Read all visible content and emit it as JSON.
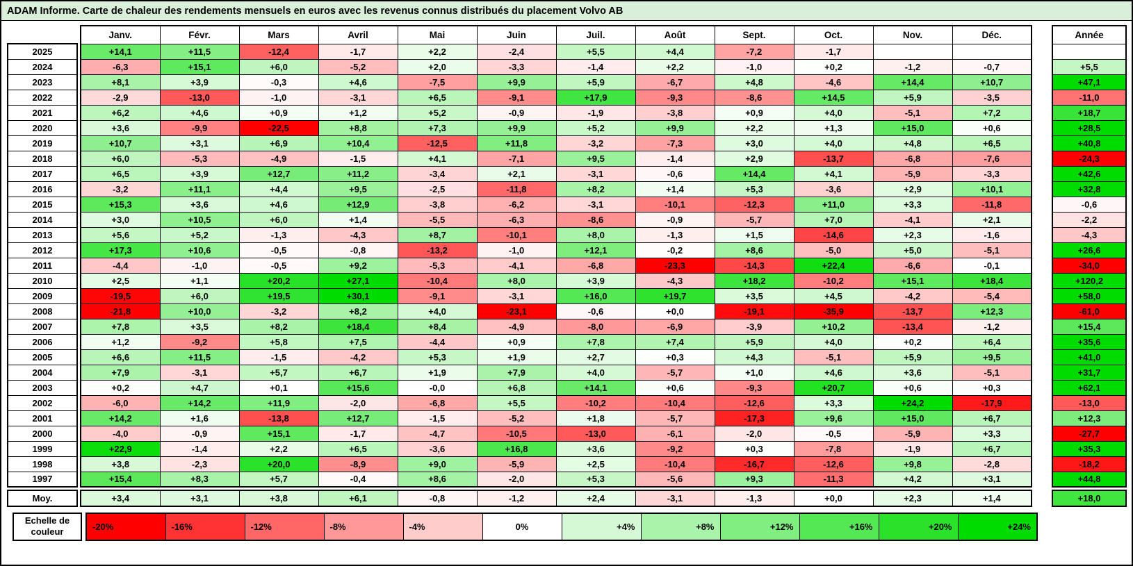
{
  "title_bar_bg": "#D9EFD9",
  "chart_data": {
    "type": "heatmap",
    "title": "ADAM Informe. Carte de chaleur des rendements mensuels en euros avec les revenus connus distribués du placement Volvo AB",
    "columns": [
      "Janv.",
      "Févr.",
      "Mars",
      "Avril",
      "Mai",
      "Juin",
      "Juil.",
      "Août",
      "Sept.",
      "Oct.",
      "Nov.",
      "Déc."
    ],
    "annual_label": "Année",
    "rows": [
      {
        "label": "2025",
        "values": [
          "+14,1",
          "+11,5",
          "-12,4",
          "-1,7",
          "+2,2",
          "-2,4",
          "+5,5",
          "+4,4",
          "-7,2",
          "-1,7",
          "",
          ""
        ],
        "annual": ""
      },
      {
        "label": "2024",
        "values": [
          "-6,3",
          "+15,1",
          "+6,0",
          "-5,2",
          "+2,0",
          "-3,3",
          "-1,4",
          "+2,2",
          "-1,0",
          "+0,2",
          "-1,2",
          "-0,7"
        ],
        "annual": "+5,5"
      },
      {
        "label": "2023",
        "values": [
          "+8,1",
          "+3,9",
          "-0,3",
          "+4,6",
          "-7,5",
          "+9,9",
          "+5,9",
          "-6,7",
          "+4,8",
          "-4,6",
          "+14,4",
          "+10,7"
        ],
        "annual": "+47,1"
      },
      {
        "label": "2022",
        "values": [
          "-2,9",
          "-13,0",
          "-1,0",
          "-3,1",
          "+6,5",
          "-9,1",
          "+17,9",
          "-9,3",
          "-8,6",
          "+14,5",
          "+5,9",
          "-3,5"
        ],
        "annual": "-11,0"
      },
      {
        "label": "2021",
        "values": [
          "+6,2",
          "+4,6",
          "+0,9",
          "+1,2",
          "+5,2",
          "-0,9",
          "-1,9",
          "-3,8",
          "+0,9",
          "+4,0",
          "-5,1",
          "+7,2"
        ],
        "annual": "+18,7"
      },
      {
        "label": "2020",
        "values": [
          "+3,6",
          "-9,9",
          "-22,5",
          "+8,8",
          "+7,3",
          "+9,9",
          "+5,2",
          "+9,9",
          "+2,2",
          "+1,3",
          "+15,0",
          "+0,6"
        ],
        "annual": "+28,5"
      },
      {
        "label": "2019",
        "values": [
          "+10,7",
          "+3,1",
          "+6,9",
          "+10,4",
          "-12,5",
          "+11,8",
          "-3,2",
          "-7,3",
          "+3,0",
          "+4,0",
          "+4,8",
          "+6,5"
        ],
        "annual": "+40,8"
      },
      {
        "label": "2018",
        "values": [
          "+6,0",
          "-5,3",
          "-4,9",
          "-1,5",
          "+4,1",
          "-7,1",
          "+9,5",
          "-1,4",
          "+2,9",
          "-13,7",
          "-6,8",
          "-7,6"
        ],
        "annual": "-24,3"
      },
      {
        "label": "2017",
        "values": [
          "+6,5",
          "+3,9",
          "+12,7",
          "+11,2",
          "-3,4",
          "+2,1",
          "-3,1",
          "-0,6",
          "+14,4",
          "+4,1",
          "-5,9",
          "-3,3"
        ],
        "annual": "+42,6"
      },
      {
        "label": "2016",
        "values": [
          "-3,2",
          "+11,1",
          "+4,4",
          "+9,5",
          "-2,5",
          "-11,8",
          "+8,2",
          "+1,4",
          "+5,3",
          "-3,6",
          "+2,9",
          "+10,1"
        ],
        "annual": "+32,8"
      },
      {
        "label": "2015",
        "values": [
          "+15,3",
          "+3,6",
          "+4,6",
          "+12,9",
          "-3,8",
          "-6,2",
          "-3,1",
          "-10,1",
          "-12,3",
          "+11,0",
          "+3,3",
          "-11,8"
        ],
        "annual": "-0,6"
      },
      {
        "label": "2014",
        "values": [
          "+3,0",
          "+10,5",
          "+6,0",
          "+1,4",
          "-5,5",
          "-6,3",
          "-8,6",
          "-0,9",
          "-5,7",
          "+7,0",
          "-4,1",
          "+2,1"
        ],
        "annual": "-2,2"
      },
      {
        "label": "2013",
        "values": [
          "+5,6",
          "+5,2",
          "-1,3",
          "-4,3",
          "+8,7",
          "-10,1",
          "+8,0",
          "-1,3",
          "+1,5",
          "-14,6",
          "+2,3",
          "-1,6"
        ],
        "annual": "-4,3"
      },
      {
        "label": "2012",
        "values": [
          "+17,3",
          "+10,6",
          "-0,5",
          "-0,8",
          "-13,2",
          "-1,0",
          "+12,1",
          "-0,2",
          "+8,6",
          "-5,0",
          "+5,0",
          "-5,1"
        ],
        "annual": "+26,6"
      },
      {
        "label": "2011",
        "values": [
          "-4,4",
          "-1,0",
          "-0,5",
          "+9,2",
          "-5,3",
          "-4,1",
          "-6,8",
          "-23,3",
          "-14,3",
          "+22,4",
          "-6,6",
          "-0,1"
        ],
        "annual": "-34,0"
      },
      {
        "label": "2010",
        "values": [
          "+2,5",
          "+1,1",
          "+20,2",
          "+27,1",
          "-10,4",
          "+8,0",
          "+3,9",
          "-4,3",
          "+18,2",
          "-10,2",
          "+15,1",
          "+18,4"
        ],
        "annual": "+120,2"
      },
      {
        "label": "2009",
        "values": [
          "-19,5",
          "+6,0",
          "+19,5",
          "+30,1",
          "-9,1",
          "-3,1",
          "+16,0",
          "+19,7",
          "+3,5",
          "+4,5",
          "-4,2",
          "-5,4"
        ],
        "annual": "+58,0"
      },
      {
        "label": "2008",
        "values": [
          "-21,8",
          "+10,0",
          "-3,2",
          "+8,2",
          "+4,0",
          "-23,1",
          "-0,6",
          "+0,0",
          "-19,1",
          "-35,9",
          "-13,7",
          "+12,3"
        ],
        "annual": "-61,0"
      },
      {
        "label": "2007",
        "values": [
          "+7,8",
          "+3,5",
          "+8,2",
          "+18,4",
          "+8,4",
          "-4,9",
          "-8,0",
          "-6,9",
          "-3,9",
          "+10,2",
          "-13,4",
          "-1,2"
        ],
        "annual": "+15,4"
      },
      {
        "label": "2006",
        "values": [
          "+1,2",
          "-9,2",
          "+5,8",
          "+7,5",
          "-4,4",
          "+0,9",
          "+7,8",
          "+7,4",
          "+5,9",
          "+4,0",
          "+0,2",
          "+6,4"
        ],
        "annual": "+35,6"
      },
      {
        "label": "2005",
        "values": [
          "+6,6",
          "+11,5",
          "-1,5",
          "-4,2",
          "+5,3",
          "+1,9",
          "+2,7",
          "+0,3",
          "+4,3",
          "-5,1",
          "+5,9",
          "+9,5"
        ],
        "annual": "+41,0"
      },
      {
        "label": "2004",
        "values": [
          "+7,9",
          "-3,1",
          "+5,7",
          "+6,7",
          "+1,9",
          "+7,9",
          "+4,0",
          "-5,7",
          "+1,0",
          "+4,6",
          "+3,6",
          "-5,1"
        ],
        "annual": "+31,7"
      },
      {
        "label": "2003",
        "values": [
          "+0,2",
          "+4,7",
          "+0,1",
          "+15,6",
          "-0,0",
          "+6,8",
          "+14,1",
          "+0,6",
          "-9,3",
          "+20,7",
          "+0,6",
          "+0,3"
        ],
        "annual": "+62,1"
      },
      {
        "label": "2002",
        "values": [
          "-6,0",
          "+14,2",
          "+11,9",
          "-2,0",
          "-6,8",
          "+5,5",
          "-10,2",
          "-10,4",
          "-12,6",
          "+3,3",
          "+24,2",
          "-17,9"
        ],
        "annual": "-13,0"
      },
      {
        "label": "2001",
        "values": [
          "+14,2",
          "+1,6",
          "-13,8",
          "+12,7",
          "-1,5",
          "-5,2",
          "+1,8",
          "-5,7",
          "-17,3",
          "+9,6",
          "+15,0",
          "+6,7"
        ],
        "annual": "+12,3"
      },
      {
        "label": "2000",
        "values": [
          "-4,0",
          "-0,9",
          "+15,1",
          "-1,7",
          "-4,7",
          "-10,5",
          "-13,0",
          "-6,1",
          "-2,0",
          "-0,5",
          "-5,9",
          "+3,3"
        ],
        "annual": "-27,7"
      },
      {
        "label": "1999",
        "values": [
          "+22,9",
          "-1,4",
          "+2,2",
          "+6,5",
          "-3,6",
          "+16,8",
          "+3,6",
          "-9,2",
          "+0,3",
          "-7,8",
          "-1,9",
          "+6,7"
        ],
        "annual": "+35,3"
      },
      {
        "label": "1998",
        "values": [
          "+3,8",
          "-2,3",
          "+20,0",
          "-8,9",
          "+9,0",
          "-5,9",
          "+2,5",
          "-10,4",
          "-16,7",
          "-12,6",
          "+9,8",
          "-2,8"
        ],
        "annual": "-18,2"
      },
      {
        "label": "1997",
        "values": [
          "+15,4",
          "+8,3",
          "+5,7",
          "-0,4",
          "+8,6",
          "-2,0",
          "+5,3",
          "-5,6",
          "+9,3",
          "-11,3",
          "+4,2",
          "+3,1"
        ],
        "annual": "+44,8"
      }
    ],
    "average": {
      "label": "Moy.",
      "values": [
        "+3,4",
        "+3,1",
        "+3,8",
        "+6,1",
        "-0,8",
        "-1,2",
        "+2,4",
        "-3,1",
        "-1,3",
        "+0,0",
        "+2,3",
        "+1,4"
      ],
      "annual": "+18,0"
    },
    "legend": {
      "label": "Echelle de couleur",
      "stops": [
        "-20%",
        "-16%",
        "-12%",
        "-8%",
        "-4%",
        "0%",
        "+4%",
        "+8%",
        "+12%",
        "+16%",
        "+20%",
        "+24%"
      ]
    },
    "color_scale": {
      "negative_max": "#FF0000",
      "zero": "#FFFFFF",
      "positive_max": "#00DC00",
      "neg_limit": -20,
      "pos_limit": 24
    }
  }
}
